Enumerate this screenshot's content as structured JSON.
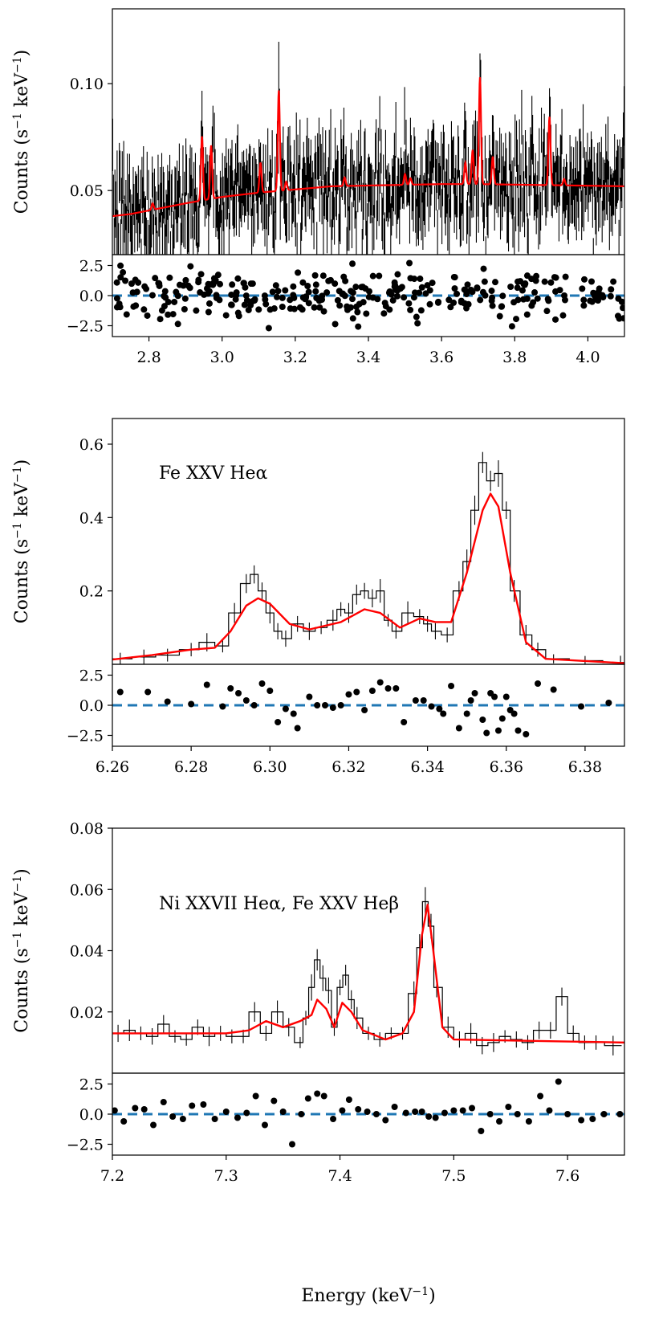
{
  "chart_data": [
    {
      "type": "spectrum",
      "panel": "top",
      "annotation": "",
      "ylabel": "Counts (s^-1 keV^-1)",
      "ylabel_parts": {
        "prefix": "Counts (s",
        "sup1": "−1",
        "mid": " keV",
        "sup2": "−1",
        "suffix": ")"
      },
      "xlim": [
        2.7,
        4.1
      ],
      "ylim": [
        0.02,
        0.135
      ],
      "xticks": [
        2.8,
        3.0,
        3.2,
        3.4,
        3.6,
        3.8,
        4.0
      ],
      "xtick_labels": [
        "2.8",
        "3.0",
        "3.2",
        "3.4",
        "3.6",
        "3.8",
        "4.0"
      ],
      "yticks": [
        0.05,
        0.1
      ],
      "ytick_labels": [
        "0.05",
        "0.10"
      ],
      "data_color": "#000000",
      "model_color": "#ff0000",
      "data": {
        "x_start": 2.7,
        "x_end": 4.1,
        "n_bins": 700,
        "continuum": [
          [
            2.7,
            0.038
          ],
          [
            3.2,
            0.052
          ],
          [
            4.1,
            0.052
          ]
        ],
        "scatter": 0.012
      },
      "model": {
        "continuum": [
          [
            2.7,
            0.038
          ],
          [
            2.75,
            0.039
          ],
          [
            2.9,
            0.044
          ],
          [
            3.0,
            0.047
          ],
          [
            3.1,
            0.049
          ],
          [
            3.3,
            0.052
          ],
          [
            3.6,
            0.053
          ],
          [
            3.7,
            0.053
          ],
          [
            4.1,
            0.052
          ]
        ],
        "lines": [
          [
            2.81,
            0.003
          ],
          [
            2.945,
            0.03
          ],
          [
            2.97,
            0.025
          ],
          [
            3.105,
            0.014
          ],
          [
            3.155,
            0.047
          ],
          [
            3.175,
            0.004
          ],
          [
            3.335,
            0.004
          ],
          [
            3.5,
            0.005
          ],
          [
            3.515,
            0.003
          ],
          [
            3.665,
            0.01
          ],
          [
            3.685,
            0.016
          ],
          [
            3.705,
            0.05
          ],
          [
            3.74,
            0.013
          ],
          [
            3.895,
            0.032
          ],
          [
            3.935,
            0.003
          ]
        ]
      },
      "residuals": {
        "ylim": [
          -3.4,
          3.4
        ],
        "yticks": [
          -2.5,
          0.0,
          2.5
        ],
        "ytick_labels": [
          "−2.5",
          "0.0",
          "2.5"
        ],
        "n_points": 310,
        "zero_line_color": "#1f77b4"
      }
    },
    {
      "type": "spectrum",
      "panel": "middle",
      "annotation": "Fe XXV Heα",
      "ylabel": "Counts (s^-1 keV^-1)",
      "ylabel_parts": {
        "prefix": "Counts (s",
        "sup1": "−1",
        "mid": " keV",
        "sup2": "−1",
        "suffix": ")"
      },
      "xlim": [
        6.26,
        6.39
      ],
      "ylim": [
        0.0,
        0.67
      ],
      "xticks": [
        6.26,
        6.28,
        6.3,
        6.32,
        6.34,
        6.36,
        6.38
      ],
      "xtick_labels": [
        "6.26",
        "6.28",
        "6.30",
        "6.32",
        "6.34",
        "6.36",
        "6.38"
      ],
      "yticks": [
        0.2,
        0.4,
        0.6
      ],
      "ytick_labels": [
        "0.2",
        "0.4",
        "0.6"
      ],
      "data_color": "#000000",
      "model_color": "#ff0000",
      "model_points": [
        [
          6.26,
          0.013
        ],
        [
          6.27,
          0.025
        ],
        [
          6.28,
          0.04
        ],
        [
          6.286,
          0.045
        ],
        [
          6.29,
          0.09
        ],
        [
          6.294,
          0.16
        ],
        [
          6.297,
          0.18
        ],
        [
          6.3,
          0.165
        ],
        [
          6.305,
          0.11
        ],
        [
          6.31,
          0.095
        ],
        [
          6.318,
          0.115
        ],
        [
          6.324,
          0.15
        ],
        [
          6.328,
          0.14
        ],
        [
          6.333,
          0.1
        ],
        [
          6.338,
          0.125
        ],
        [
          6.342,
          0.115
        ],
        [
          6.346,
          0.115
        ],
        [
          6.35,
          0.25
        ],
        [
          6.354,
          0.42
        ],
        [
          6.356,
          0.465
        ],
        [
          6.358,
          0.43
        ],
        [
          6.361,
          0.25
        ],
        [
          6.365,
          0.06
        ],
        [
          6.37,
          0.015
        ],
        [
          6.39,
          0.003
        ]
      ],
      "data_points": [
        [
          6.262,
          0.015
        ],
        [
          6.268,
          0.02
        ],
        [
          6.274,
          0.025
        ],
        [
          6.28,
          0.04
        ],
        [
          6.284,
          0.06
        ],
        [
          6.288,
          0.05
        ],
        [
          6.291,
          0.14
        ],
        [
          6.294,
          0.22
        ],
        [
          6.296,
          0.245
        ],
        [
          6.298,
          0.2
        ],
        [
          6.3,
          0.14
        ],
        [
          6.302,
          0.09
        ],
        [
          6.304,
          0.07
        ],
        [
          6.307,
          0.11
        ],
        [
          6.31,
          0.09
        ],
        [
          6.313,
          0.1
        ],
        [
          6.316,
          0.12
        ],
        [
          6.318,
          0.15
        ],
        [
          6.32,
          0.14
        ],
        [
          6.322,
          0.19
        ],
        [
          6.324,
          0.2
        ],
        [
          6.326,
          0.18
        ],
        [
          6.328,
          0.2
        ],
        [
          6.33,
          0.12
        ],
        [
          6.332,
          0.09
        ],
        [
          6.335,
          0.14
        ],
        [
          6.338,
          0.13
        ],
        [
          6.34,
          0.11
        ],
        [
          6.342,
          0.09
        ],
        [
          6.345,
          0.08
        ],
        [
          6.348,
          0.2
        ],
        [
          6.35,
          0.28
        ],
        [
          6.352,
          0.42
        ],
        [
          6.354,
          0.55
        ],
        [
          6.356,
          0.5
        ],
        [
          6.358,
          0.52
        ],
        [
          6.36,
          0.42
        ],
        [
          6.362,
          0.2
        ],
        [
          6.365,
          0.08
        ],
        [
          6.368,
          0.04
        ],
        [
          6.372,
          0.015
        ],
        [
          6.38,
          0.01
        ],
        [
          6.389,
          0.005
        ]
      ],
      "residuals": {
        "ylim": [
          -3.4,
          3.4
        ],
        "yticks": [
          -2.5,
          0.0,
          2.5
        ],
        "ytick_labels": [
          "−2.5",
          "0.0",
          "2.5"
        ],
        "points": [
          [
            6.262,
            1.1
          ],
          [
            6.269,
            1.1
          ],
          [
            6.274,
            0.3
          ],
          [
            6.28,
            0.1
          ],
          [
            6.284,
            1.7
          ],
          [
            6.288,
            -0.1
          ],
          [
            6.29,
            1.4
          ],
          [
            6.292,
            1.0
          ],
          [
            6.294,
            0.4
          ],
          [
            6.296,
            0.0
          ],
          [
            6.298,
            1.8
          ],
          [
            6.3,
            1.2
          ],
          [
            6.302,
            -1.4
          ],
          [
            6.304,
            -0.3
          ],
          [
            6.306,
            -0.7
          ],
          [
            6.307,
            -1.9
          ],
          [
            6.31,
            0.7
          ],
          [
            6.312,
            0.0
          ],
          [
            6.314,
            0.0
          ],
          [
            6.316,
            -0.2
          ],
          [
            6.318,
            0.0
          ],
          [
            6.32,
            0.9
          ],
          [
            6.322,
            1.1
          ],
          [
            6.324,
            -0.4
          ],
          [
            6.326,
            1.2
          ],
          [
            6.328,
            1.9
          ],
          [
            6.33,
            1.4
          ],
          [
            6.332,
            1.4
          ],
          [
            6.334,
            -1.4
          ],
          [
            6.337,
            0.4
          ],
          [
            6.339,
            0.4
          ],
          [
            6.341,
            -0.1
          ],
          [
            6.343,
            -0.3
          ],
          [
            6.344,
            -0.7
          ],
          [
            6.346,
            1.6
          ],
          [
            6.348,
            -1.9
          ],
          [
            6.35,
            -0.7
          ],
          [
            6.351,
            0.4
          ],
          [
            6.352,
            1.0
          ],
          [
            6.354,
            -1.2
          ],
          [
            6.355,
            -2.3
          ],
          [
            6.356,
            1.0
          ],
          [
            6.357,
            0.7
          ],
          [
            6.358,
            -2.1
          ],
          [
            6.359,
            -1.1
          ],
          [
            6.36,
            0.7
          ],
          [
            6.361,
            -0.4
          ],
          [
            6.362,
            -0.7
          ],
          [
            6.363,
            -2.1
          ],
          [
            6.365,
            -2.4
          ],
          [
            6.368,
            1.8
          ],
          [
            6.372,
            1.3
          ],
          [
            6.379,
            -0.1
          ],
          [
            6.386,
            0.2
          ]
        ],
        "zero_line_color": "#1f77b4"
      }
    },
    {
      "type": "spectrum",
      "panel": "bottom",
      "annotation": "Ni XXVII Heα, Fe XXV Heβ",
      "ylabel": "Counts (s^-1 keV^-1)",
      "ylabel_parts": {
        "prefix": "Counts (s",
        "sup1": "−1",
        "mid": " keV",
        "sup2": "−1",
        "suffix": ")"
      },
      "xlim": [
        7.2,
        7.65
      ],
      "ylim": [
        0.0,
        0.08
      ],
      "xticks": [
        7.2,
        7.3,
        7.4,
        7.5,
        7.6
      ],
      "xtick_labels": [
        "7.2",
        "7.3",
        "7.4",
        "7.5",
        "7.6"
      ],
      "yticks": [
        0.02,
        0.04,
        0.06,
        0.08
      ],
      "ytick_labels": [
        "0.02",
        "0.04",
        "0.06",
        "0.08"
      ],
      "xlabel": "Energy (keV^-1)",
      "xlabel_parts": {
        "prefix": "Energy (keV",
        "sup": "−1",
        "suffix": ")"
      },
      "data_color": "#000000",
      "model_color": "#ff0000",
      "model_points": [
        [
          7.2,
          0.013
        ],
        [
          7.3,
          0.013
        ],
        [
          7.32,
          0.014
        ],
        [
          7.335,
          0.017
        ],
        [
          7.35,
          0.015
        ],
        [
          7.365,
          0.017
        ],
        [
          7.375,
          0.019
        ],
        [
          7.38,
          0.024
        ],
        [
          7.388,
          0.021
        ],
        [
          7.395,
          0.015
        ],
        [
          7.402,
          0.023
        ],
        [
          7.41,
          0.02
        ],
        [
          7.42,
          0.014
        ],
        [
          7.44,
          0.011
        ],
        [
          7.455,
          0.013
        ],
        [
          7.465,
          0.02
        ],
        [
          7.472,
          0.045
        ],
        [
          7.477,
          0.055
        ],
        [
          7.482,
          0.04
        ],
        [
          7.49,
          0.015
        ],
        [
          7.5,
          0.011
        ],
        [
          7.65,
          0.01
        ]
      ],
      "data_points": [
        [
          7.205,
          0.013
        ],
        [
          7.215,
          0.014
        ],
        [
          7.225,
          0.013
        ],
        [
          7.235,
          0.012
        ],
        [
          7.245,
          0.016
        ],
        [
          7.255,
          0.012
        ],
        [
          7.265,
          0.011
        ],
        [
          7.275,
          0.015
        ],
        [
          7.285,
          0.012
        ],
        [
          7.295,
          0.013
        ],
        [
          7.305,
          0.012
        ],
        [
          7.315,
          0.012
        ],
        [
          7.325,
          0.02
        ],
        [
          7.335,
          0.013
        ],
        [
          7.345,
          0.02
        ],
        [
          7.355,
          0.015
        ],
        [
          7.365,
          0.01
        ],
        [
          7.37,
          0.018
        ],
        [
          7.375,
          0.028
        ],
        [
          7.38,
          0.037
        ],
        [
          7.385,
          0.031
        ],
        [
          7.39,
          0.027
        ],
        [
          7.395,
          0.015
        ],
        [
          7.4,
          0.028
        ],
        [
          7.405,
          0.032
        ],
        [
          7.41,
          0.024
        ],
        [
          7.415,
          0.018
        ],
        [
          7.425,
          0.013
        ],
        [
          7.435,
          0.011
        ],
        [
          7.445,
          0.013
        ],
        [
          7.455,
          0.013
        ],
        [
          7.465,
          0.026
        ],
        [
          7.47,
          0.041
        ],
        [
          7.475,
          0.056
        ],
        [
          7.48,
          0.048
        ],
        [
          7.485,
          0.028
        ],
        [
          7.495,
          0.015
        ],
        [
          7.505,
          0.011
        ],
        [
          7.515,
          0.013
        ],
        [
          7.525,
          0.009
        ],
        [
          7.535,
          0.01
        ],
        [
          7.545,
          0.012
        ],
        [
          7.555,
          0.011
        ],
        [
          7.565,
          0.01
        ],
        [
          7.575,
          0.014
        ],
        [
          7.585,
          0.014
        ],
        [
          7.595,
          0.025
        ],
        [
          7.605,
          0.013
        ],
        [
          7.615,
          0.01
        ],
        [
          7.625,
          0.01
        ],
        [
          7.64,
          0.009
        ]
      ],
      "residuals": {
        "ylim": [
          -3.4,
          3.4
        ],
        "yticks": [
          -2.5,
          0.0,
          2.5
        ],
        "ytick_labels": [
          "−2.5",
          "0.0",
          "2.5"
        ],
        "points": [
          [
            7.202,
            0.3
          ],
          [
            7.21,
            -0.6
          ],
          [
            7.22,
            0.5
          ],
          [
            7.228,
            0.4
          ],
          [
            7.236,
            -0.9
          ],
          [
            7.245,
            1.0
          ],
          [
            7.253,
            -0.2
          ],
          [
            7.262,
            -0.4
          ],
          [
            7.27,
            0.7
          ],
          [
            7.28,
            0.8
          ],
          [
            7.29,
            -0.4
          ],
          [
            7.3,
            0.2
          ],
          [
            7.31,
            -0.3
          ],
          [
            7.318,
            0.1
          ],
          [
            7.326,
            1.5
          ],
          [
            7.334,
            -0.9
          ],
          [
            7.342,
            1.1
          ],
          [
            7.35,
            0.2
          ],
          [
            7.358,
            -2.5
          ],
          [
            7.366,
            0.0
          ],
          [
            7.372,
            1.3
          ],
          [
            7.38,
            1.7
          ],
          [
            7.386,
            1.5
          ],
          [
            7.394,
            -0.4
          ],
          [
            7.402,
            0.3
          ],
          [
            7.408,
            1.2
          ],
          [
            7.416,
            0.4
          ],
          [
            7.424,
            0.2
          ],
          [
            7.432,
            0.0
          ],
          [
            7.44,
            -0.5
          ],
          [
            7.448,
            0.6
          ],
          [
            7.458,
            0.1
          ],
          [
            7.466,
            0.2
          ],
          [
            7.472,
            0.2
          ],
          [
            7.478,
            -0.2
          ],
          [
            7.484,
            -0.3
          ],
          [
            7.492,
            0.1
          ],
          [
            7.5,
            0.3
          ],
          [
            7.508,
            0.3
          ],
          [
            7.516,
            0.5
          ],
          [
            7.524,
            -1.4
          ],
          [
            7.532,
            0.0
          ],
          [
            7.54,
            -0.6
          ],
          [
            7.548,
            0.6
          ],
          [
            7.556,
            0.0
          ],
          [
            7.566,
            -0.6
          ],
          [
            7.576,
            1.5
          ],
          [
            7.584,
            0.3
          ],
          [
            7.592,
            2.7
          ],
          [
            7.6,
            0.0
          ],
          [
            7.612,
            -0.5
          ],
          [
            7.622,
            -0.4
          ],
          [
            7.632,
            0.0
          ],
          [
            7.646,
            0.0
          ]
        ],
        "zero_line_color": "#1f77b4"
      }
    }
  ]
}
